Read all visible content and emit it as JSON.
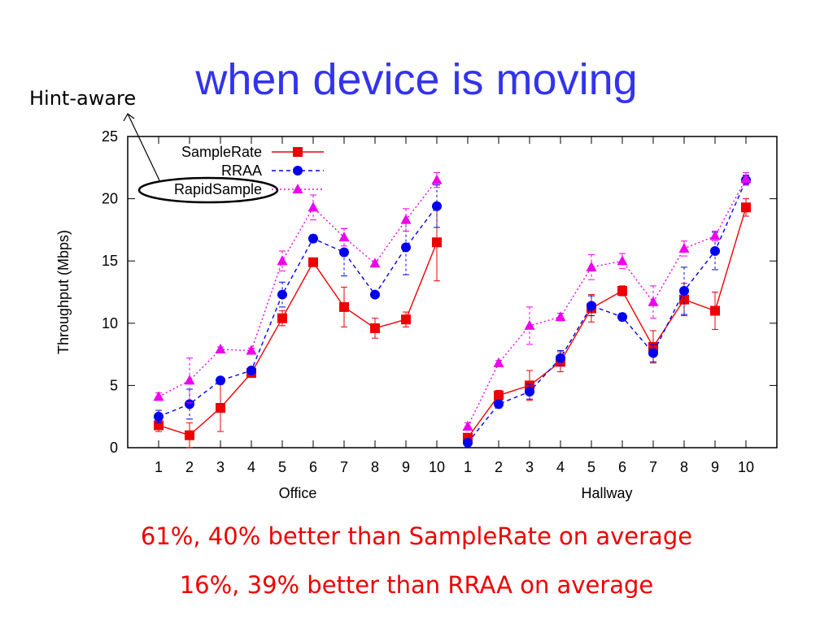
{
  "slide": {
    "title": "when device is moving",
    "annotation": "Hint-aware",
    "captions": [
      "61%, 40% better than SampleRate on average",
      "16%, 39% better than RRAA on average"
    ]
  },
  "chart_data": {
    "type": "line",
    "ylabel": "Throughput (Mbps)",
    "ylim": [
      0,
      25
    ],
    "yticks": [
      0,
      5,
      10,
      15,
      20,
      25
    ],
    "groups": [
      {
        "name": "Office",
        "categories": [
          "1",
          "2",
          "3",
          "4",
          "5",
          "6",
          "7",
          "8",
          "9",
          "10"
        ]
      },
      {
        "name": "Hallway",
        "categories": [
          "1",
          "2",
          "3",
          "4",
          "5",
          "6",
          "7",
          "8",
          "9",
          "10"
        ]
      }
    ],
    "legend_position": "top-left",
    "series": [
      {
        "name": "SampleRate",
        "color": "#ee0000",
        "line": "solid",
        "marker": "square",
        "groups": [
          {
            "values": [
              1.8,
              1.0,
              3.2,
              6.0,
              10.4,
              14.9,
              11.3,
              9.6,
              10.3,
              16.5
            ],
            "errors": [
              0.5,
              1.0,
              1.9,
              0.3,
              0.6,
              0.3,
              1.6,
              0.8,
              0.6,
              3.1
            ]
          },
          {
            "values": [
              0.8,
              4.2,
              5.0,
              6.9,
              11.2,
              12.6,
              8.1,
              11.9,
              11.0,
              19.3
            ],
            "errors": [
              0.3,
              0.4,
              1.2,
              0.8,
              1.1,
              0.4,
              1.3,
              1.3,
              1.5,
              0.7
            ]
          }
        ]
      },
      {
        "name": "RRAA",
        "color": "#0000ee",
        "line": "dashed",
        "marker": "circle",
        "groups": [
          {
            "values": [
              2.5,
              3.5,
              5.4,
              6.2,
              12.3,
              16.8,
              15.7,
              12.3,
              16.1,
              19.4
            ],
            "errors": [
              0.5,
              1.2,
              0.2,
              0.2,
              1.0,
              0.3,
              1.9,
              0.2,
              2.2,
              1.7
            ]
          },
          {
            "values": [
              0.4,
              3.5,
              4.5,
              7.2,
              11.4,
              10.5,
              7.6,
              12.6,
              15.8,
              21.5
            ],
            "errors": [
              0.2,
              0.3,
              0.6,
              0.6,
              0.8,
              0.3,
              0.7,
              1.9,
              1.5,
              0.4
            ]
          }
        ]
      },
      {
        "name": "RapidSample",
        "color": "#ee00ee",
        "line": "dotted",
        "marker": "triangle",
        "groups": [
          {
            "values": [
              4.1,
              5.4,
              7.9,
              7.8,
              15.0,
              19.3,
              16.9,
              14.8,
              18.3,
              21.5
            ],
            "errors": [
              0.3,
              1.8,
              0.2,
              0.2,
              0.8,
              1.0,
              0.7,
              0.2,
              0.9,
              0.6
            ]
          },
          {
            "values": [
              1.7,
              6.8,
              9.8,
              10.5,
              14.5,
              15.0,
              11.7,
              16.0,
              17.0,
              21.6
            ],
            "errors": [
              0.3,
              0.2,
              1.5,
              0.3,
              1.0,
              0.6,
              1.3,
              0.6,
              0.4,
              0.5
            ]
          }
        ]
      }
    ]
  }
}
